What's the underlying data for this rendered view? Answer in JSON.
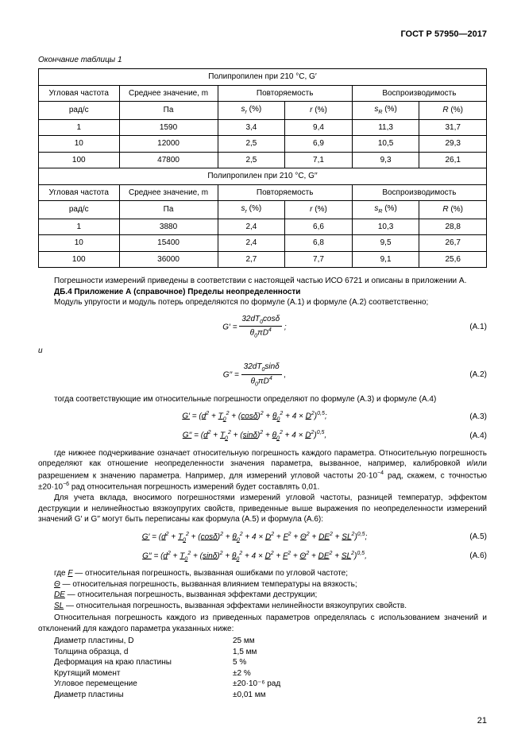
{
  "docId": "ГОСТ Р 57950—2017",
  "tableCaption": "Окончание таблицы 1",
  "tables": [
    {
      "title": "Полипропилен при 210 °C, G′",
      "headers1": [
        "Угловая частота",
        "Среднее значение, m",
        "Повторяемость",
        "Воспроизводимость"
      ],
      "headers2": [
        "рад/с",
        "Па",
        "s_r (%)",
        "r (%)",
        "s_R (%)",
        "R (%)"
      ],
      "rows": [
        [
          "1",
          "1590",
          "3,4",
          "9,4",
          "11,3",
          "31,7"
        ],
        [
          "10",
          "12000",
          "2,5",
          "6,9",
          "10,5",
          "29,3"
        ],
        [
          "100",
          "47800",
          "2,5",
          "7,1",
          "9,3",
          "26,1"
        ]
      ]
    },
    {
      "title": "Полипропилен при 210 °C, G′′",
      "headers1": [
        "Угловая частота",
        "Среднее значение, m",
        "Повторяемость",
        "Воспроизводимость"
      ],
      "headers2": [
        "рад/с",
        "Па",
        "s_r (%)",
        "r (%)",
        "s_R (%)",
        "R (%)"
      ],
      "rows": [
        [
          "1",
          "3880",
          "2,4",
          "6,6",
          "10,3",
          "28,8"
        ],
        [
          "10",
          "15400",
          "2,4",
          "6,8",
          "9,5",
          "26,7"
        ],
        [
          "100",
          "36000",
          "2,7",
          "7,7",
          "9,1",
          "25,6"
        ]
      ]
    }
  ],
  "para1": "Погрешности измерений приведены в соответствии с настоящей частью ИСО 6721 и описаны в приложении А.",
  "heading": "ДБ.4 Приложение А (справочное) Пределы неопределенности",
  "para2": "Модуль упругости и модуль потерь определяются по формуле (А.1) и формуле (А.2) соответственно;",
  "and": "и",
  "eqLabels": {
    "a1": "(A.1)",
    "a2": "(A.2)",
    "a3": "(A.3)",
    "a4": "(A.4)",
    "a5": "(A.5)",
    "a6": "(A.6)"
  },
  "para3": "тогда соответствующие им относительные погрешности определяют по формуле (А.3) и формуле (А.4)",
  "para4a": "где нижнее подчеркивание означает относительную погрешность каждого параметра. Относительную погрешность определяют как отношение неопределенности значения параметра, вызванное, например, калибровкой и/или разрешением к значению параметра. Например, для измерений угловой частоты 20·10",
  "para4b": " рад, скажем, с точностью ±20·10",
  "para4c": " рад относительная погрешность измерений будет составлять 0,01.",
  "para5": "Для учета вклада, вносимого погрешностями измерений угловой частоты, разницей температур, эффектом деструкции и нелинейностью вязкоупругих свойств, приведенные выше выражения по неопределенности измерений значений G′ и G′′ могут быть переписаны как формула (А.5) и формула (А.6):",
  "where": [
    {
      "sym": "F",
      "text": " — относительная погрешность, вызванная ошибками по угловой частоте;"
    },
    {
      "sym": "Θ",
      "text": " — относительная погрешность, вызванная влиянием температуры на вязкость;"
    },
    {
      "sym": "DE",
      "text": " — относительная погрешность, вызванная эффектами деструкции;"
    },
    {
      "sym": "SL",
      "text": " — относительная погрешность, вызванная эффектами нелинейности вязкоупругих свойств."
    }
  ],
  "whereIntro": "где ",
  "para6": "Относительная погрешность каждого из приведенных параметров определялась с использованием значений и отклонений для каждого параметра указанных ниже:",
  "params": [
    {
      "name": "Диаметр пластины, D",
      "value": "25 мм"
    },
    {
      "name": "Толщина образца, d",
      "value": "1,5 мм"
    },
    {
      "name": "Деформация на краю пластины",
      "value": "5 %"
    },
    {
      "name": "Крутящий момент",
      "value": "±2 %"
    },
    {
      "name": "Угловое перемещение",
      "value": "±20·10⁻⁶ рад"
    },
    {
      "name": "Диаметр пластины",
      "value": "±0,01 мм"
    }
  ],
  "pageNum": "21",
  "colWidths": [
    "18%",
    "22%",
    "15%",
    "15%",
    "15%",
    "15%"
  ],
  "style": {
    "background": "#ffffff",
    "textColor": "#000000",
    "borderColor": "#000000",
    "fontSize": 10,
    "pageWidth": 661,
    "pageHeight": 935
  }
}
